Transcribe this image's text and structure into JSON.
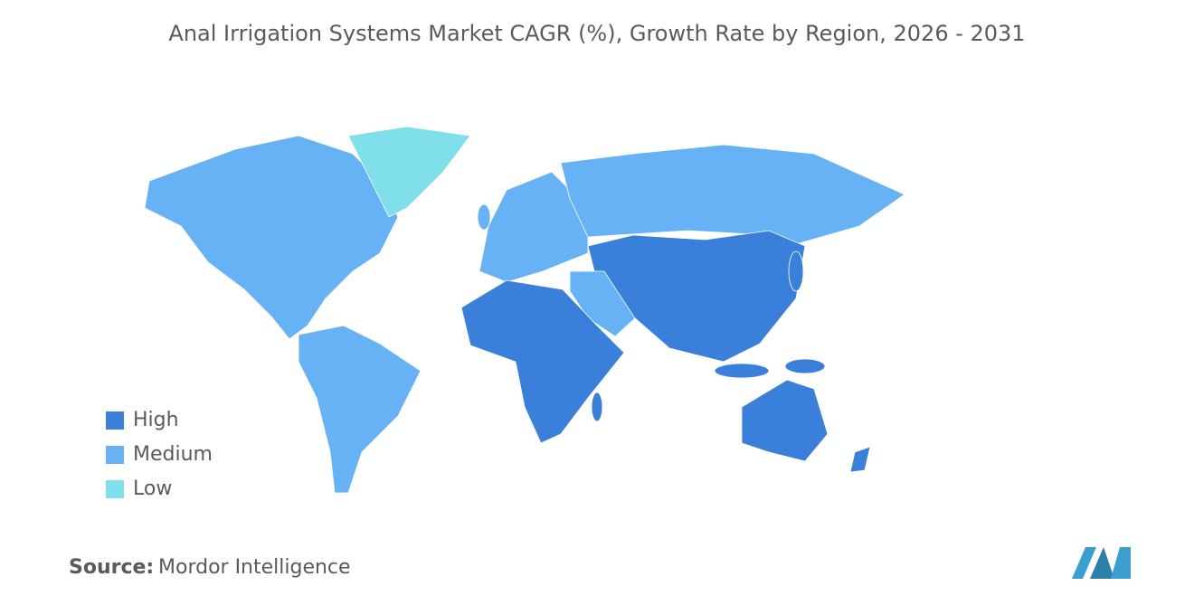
{
  "title": "Anal Irrigation Systems Market CAGR (%), Growth Rate by Region, 2026 - 2031",
  "legend": [
    {
      "name": "High",
      "color": "#3a7fd9"
    },
    {
      "name": "Medium",
      "color": "#66b2f5"
    },
    {
      "name": "Low",
      "color": "#7fe0ec"
    }
  ],
  "source": {
    "label": "Source:",
    "text": "Mordor Intelligence"
  }
}
